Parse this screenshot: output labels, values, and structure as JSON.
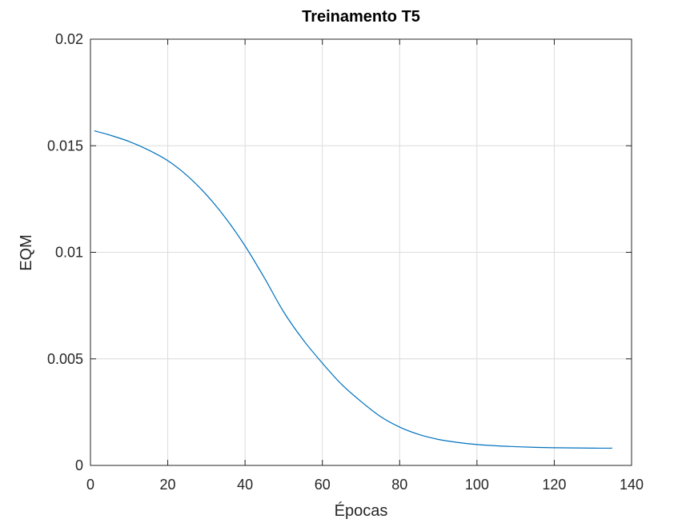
{
  "chart_data": {
    "type": "line",
    "title": "Treinamento T5",
    "xlabel": "Épocas",
    "ylabel": "EQM",
    "xlim": [
      0,
      140
    ],
    "ylim": [
      0,
      0.02
    ],
    "xticks": [
      0,
      20,
      40,
      60,
      80,
      100,
      120,
      140
    ],
    "xtick_labels": [
      "0",
      "20",
      "40",
      "60",
      "80",
      "100",
      "120",
      "140"
    ],
    "yticks": [
      0,
      0.005,
      0.01,
      0.015,
      0.02
    ],
    "ytick_labels": [
      "0",
      "0.005",
      "0.01",
      "0.015",
      "0.02"
    ],
    "grid": true,
    "legend": false,
    "series": [
      {
        "color": "#0072bd",
        "x": [
          1,
          5,
          10,
          15,
          20,
          25,
          30,
          35,
          40,
          45,
          50,
          55,
          60,
          65,
          70,
          75,
          80,
          85,
          90,
          95,
          100,
          105,
          110,
          115,
          120,
          125,
          130,
          135
        ],
        "y": [
          0.0157,
          0.0155,
          0.0152,
          0.0148,
          0.0143,
          0.0136,
          0.0127,
          0.0116,
          0.0103,
          0.0088,
          0.0072,
          0.0059,
          0.0048,
          0.0038,
          0.003,
          0.0023,
          0.0018,
          0.00145,
          0.00122,
          0.00108,
          0.00098,
          0.00092,
          0.00088,
          0.00085,
          0.00083,
          0.00082,
          0.00081,
          0.00081
        ]
      }
    ]
  }
}
